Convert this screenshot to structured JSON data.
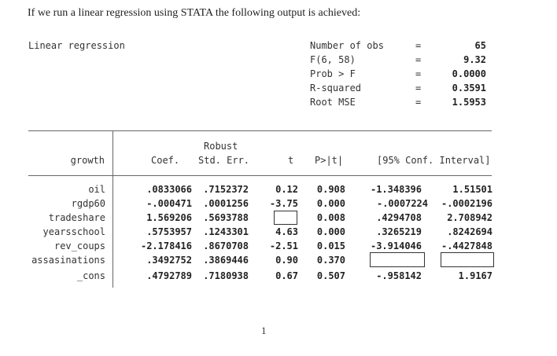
{
  "intro_text": "If we run a linear regression using STATA the following output is achieved:",
  "title": "Linear regression",
  "stats": [
    {
      "label": "Number of obs",
      "eq": "=",
      "value": "65"
    },
    {
      "label": "F(6, 58)",
      "eq": "=",
      "value": "9.32"
    },
    {
      "label": "Prob > F",
      "eq": "=",
      "value": "0.0000"
    },
    {
      "label": "R-squared",
      "eq": "=",
      "value": "0.3591"
    },
    {
      "label": "Root MSE",
      "eq": "=",
      "value": "1.5953"
    }
  ],
  "header": {
    "depvar": "growth",
    "coef": "Coef.",
    "robust": "Robust",
    "stderr": "Std. Err.",
    "t": "t",
    "p": "P>|t|",
    "ci": "[95% Conf. Interval]"
  },
  "rows": [
    {
      "var": "oil",
      "coef": ".0833066",
      "se": ".7152372",
      "t": "0.12",
      "p": "0.908",
      "lo": "-1.348396",
      "hi": "1.51501"
    },
    {
      "var": "rgdp60",
      "coef": "-.000471",
      "se": ".0001256",
      "t": "-3.75",
      "p": "0.000",
      "lo": "-.0007224",
      "hi": "-.0002196"
    },
    {
      "var": "tradeshare",
      "coef": "1.569206",
      "se": ".5693788",
      "t": "",
      "p": "0.008",
      "lo": ".4294708",
      "hi": "2.708942"
    },
    {
      "var": "yearsschool",
      "coef": ".5753957",
      "se": ".1243301",
      "t": "4.63",
      "p": "0.000",
      "lo": ".3265219",
      "hi": ".8242694"
    },
    {
      "var": "rev_coups",
      "coef": "-2.178416",
      "se": ".8670708",
      "t": "-2.51",
      "p": "0.015",
      "lo": "-3.914046",
      "hi": "-.4427848"
    },
    {
      "var": "assasinations",
      "coef": ".3492752",
      "se": ".3869446",
      "t": "0.90",
      "p": "0.370",
      "lo": "",
      "hi": ""
    },
    {
      "var": "_cons",
      "coef": ".4792789",
      "se": ".7180938",
      "t": "0.67",
      "p": "0.507",
      "lo": "-.958142",
      "hi": "1.9167"
    }
  ],
  "page_number": "1"
}
